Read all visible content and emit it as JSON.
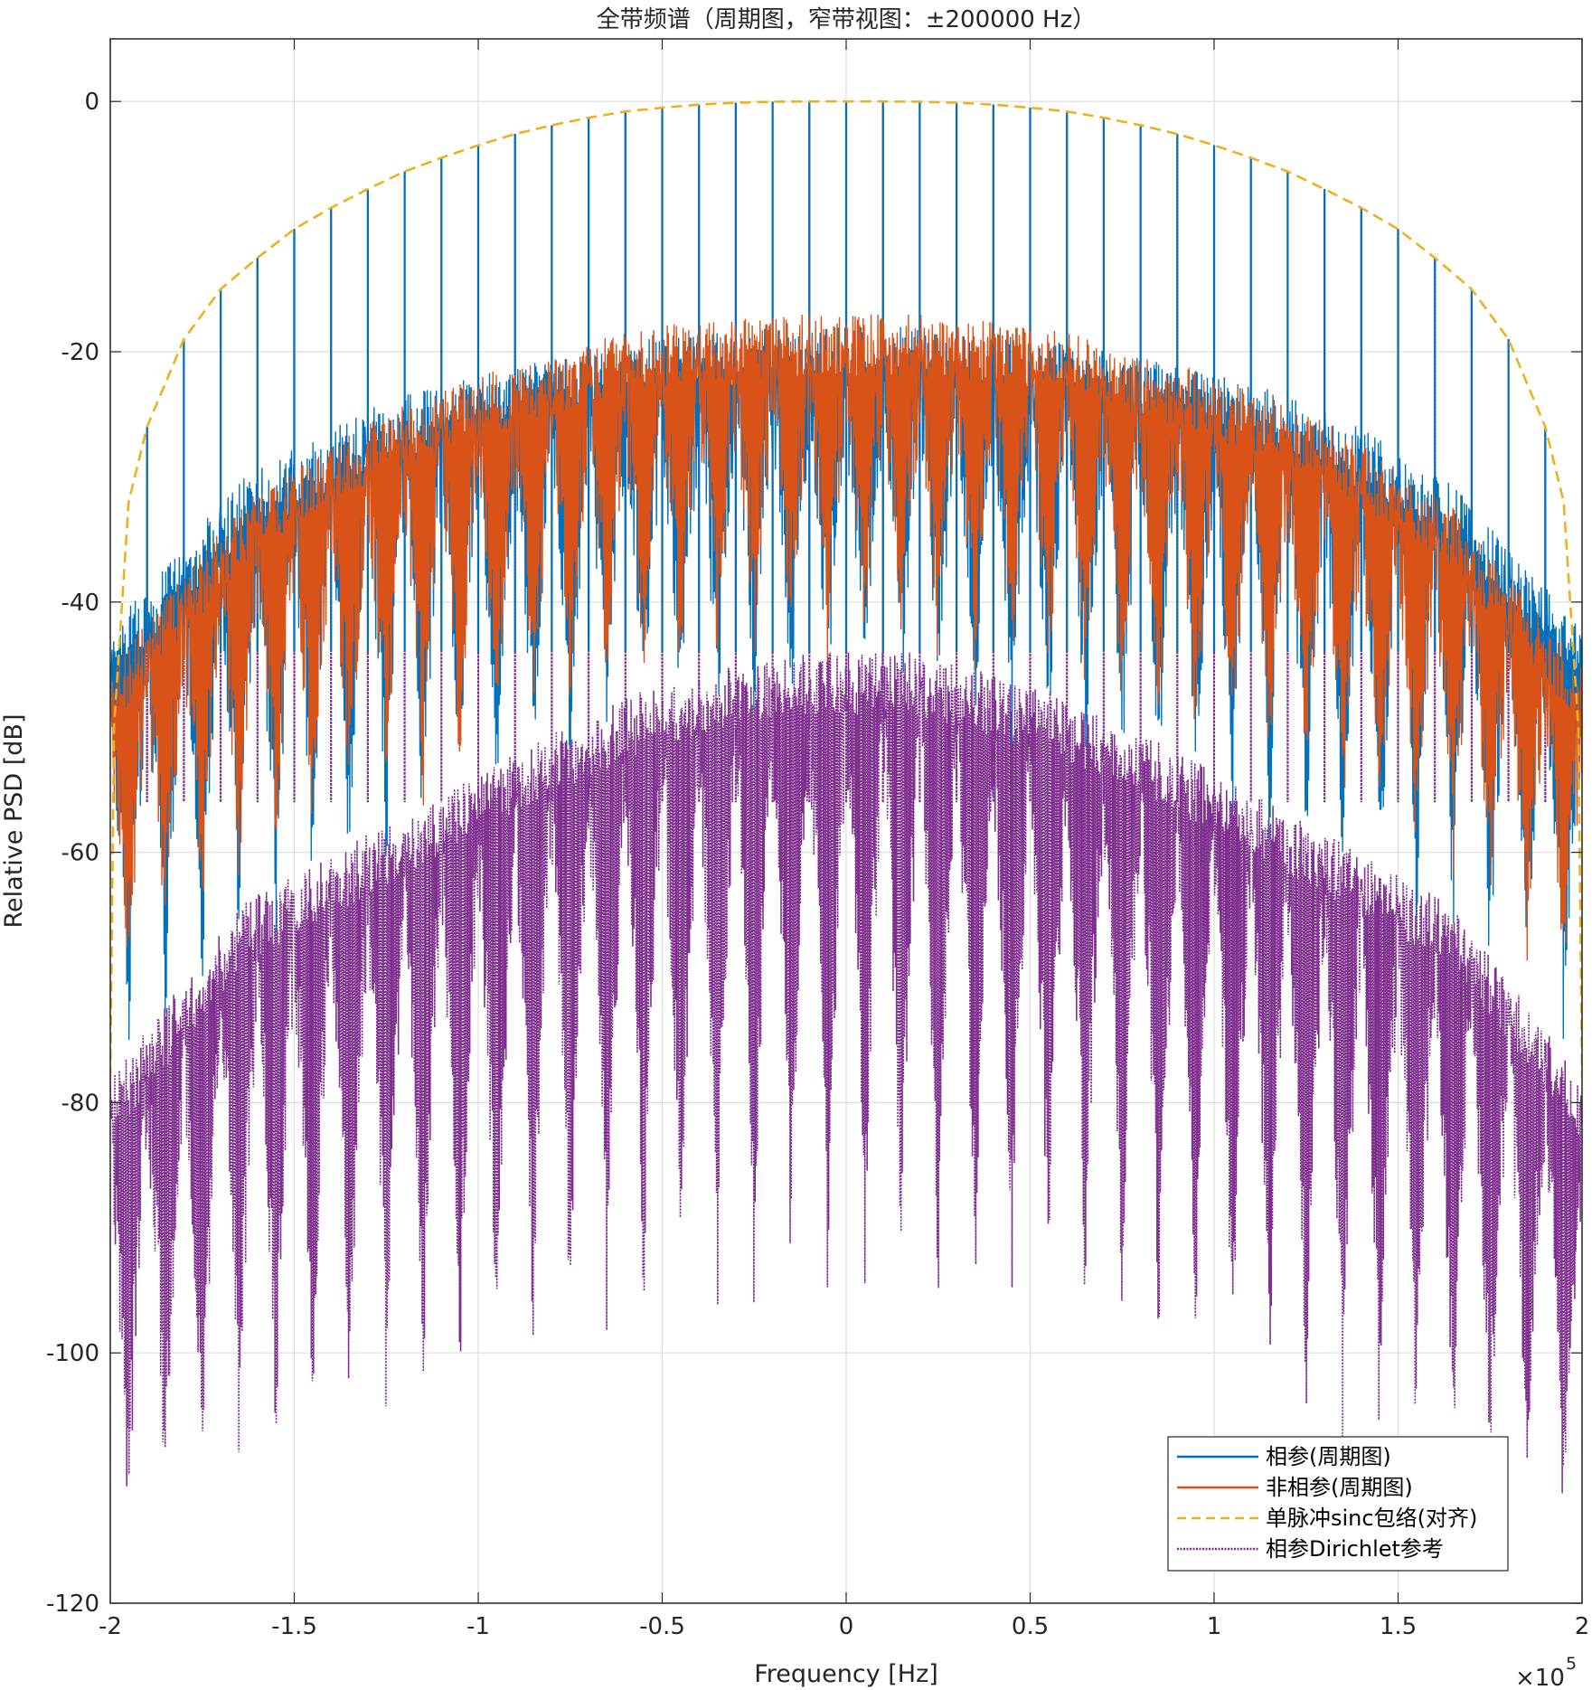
{
  "chart_data": {
    "type": "line",
    "title": "全带频谱（周期图，窄带视图：±200000 Hz）",
    "xlabel": "Frequency [Hz]",
    "ylabel": "Relative PSD [dB]",
    "xlim": [
      -200000,
      200000
    ],
    "ylim": [
      -120,
      5
    ],
    "x_ticks": [
      -200000,
      -150000,
      -100000,
      -50000,
      0,
      50000,
      100000,
      150000,
      200000
    ],
    "x_tick_labels": [
      "-2",
      "-1.5",
      "-1",
      "-0.5",
      "0",
      "0.5",
      "1",
      "1.5",
      "2"
    ],
    "x_exponent_label": "×10",
    "x_exponent_power": "5",
    "y_ticks": [
      0,
      -20,
      -40,
      -60,
      -80,
      -100,
      -120
    ],
    "y_tick_labels": [
      "0",
      "-20",
      "-40",
      "-60",
      "-80",
      "-100",
      "-120"
    ],
    "grid": true,
    "legend_position": "bottom-right",
    "line_spacing_hz": 10000,
    "series": [
      {
        "name": "相参(周期图)",
        "color": "#0072BD",
        "style": "solid",
        "upper_db": [
          -42,
          -30,
          -24,
          -21,
          -19,
          -18,
          -18,
          -19,
          -21,
          -24,
          -30,
          -42
        ],
        "lower_db": [
          -70,
          -62,
          -56,
          -50,
          -45,
          -42,
          -42,
          -45,
          -50,
          -56,
          -62,
          -70
        ],
        "line_db": [
          -27,
          -19,
          -13,
          -9,
          -6,
          -3,
          -2,
          -1,
          -0.5,
          -0.2,
          0,
          -0.2,
          -0.5,
          -1,
          -2,
          -3,
          -6,
          -9,
          -13,
          -19,
          -27
        ]
      },
      {
        "name": "非相参(周期图)",
        "color": "#D95319",
        "style": "solid",
        "upper_db": [
          -45,
          -32,
          -25,
          -21,
          -18,
          -17,
          -17,
          -18,
          -21,
          -25,
          -32,
          -45
        ],
        "lower_db": [
          -64,
          -56,
          -50,
          -45,
          -40,
          -37,
          -37,
          -40,
          -45,
          -50,
          -56,
          -64
        ]
      },
      {
        "name": "单脉冲sinc包络(对齐)",
        "color": "#EDB120",
        "style": "dashed",
        "x": [
          -200000,
          -199000,
          -195000,
          -190000,
          -180000,
          -170000,
          -160000,
          -150000,
          -140000,
          -130000,
          -120000,
          -110000,
          -100000,
          -90000,
          -80000,
          -70000,
          -60000,
          -50000,
          -40000,
          -30000,
          -20000,
          -10000,
          0,
          10000,
          20000,
          30000,
          40000,
          50000,
          60000,
          70000,
          80000,
          90000,
          100000,
          110000,
          120000,
          130000,
          140000,
          150000,
          160000,
          170000,
          180000,
          190000,
          195000,
          199000,
          200000
        ],
        "y": [
          -78,
          -50,
          -32,
          -26,
          -19,
          -15,
          -12.5,
          -10.2,
          -8.5,
          -7,
          -5.6,
          -4.5,
          -3.5,
          -2.6,
          -1.9,
          -1.3,
          -0.8,
          -0.5,
          -0.25,
          -0.1,
          -0.02,
          0,
          0,
          0,
          -0.02,
          -0.1,
          -0.25,
          -0.5,
          -0.8,
          -1.3,
          -1.9,
          -2.6,
          -3.5,
          -4.5,
          -5.6,
          -7,
          -8.5,
          -10.2,
          -12.5,
          -15,
          -19,
          -26,
          -32,
          -50,
          -78
        ]
      },
      {
        "name": "相参Dirichlet参考",
        "color": "#7E2F8E",
        "style": "dotted",
        "upper_db": [
          -78,
          -64,
          -58,
          -52,
          -47,
          -44,
          -44,
          -47,
          -52,
          -58,
          -64,
          -78
        ],
        "lower_db": [
          -110,
          -105,
          -100,
          -96,
          -92,
          -90,
          -90,
          -92,
          -96,
          -100,
          -105,
          -110
        ]
      }
    ]
  }
}
